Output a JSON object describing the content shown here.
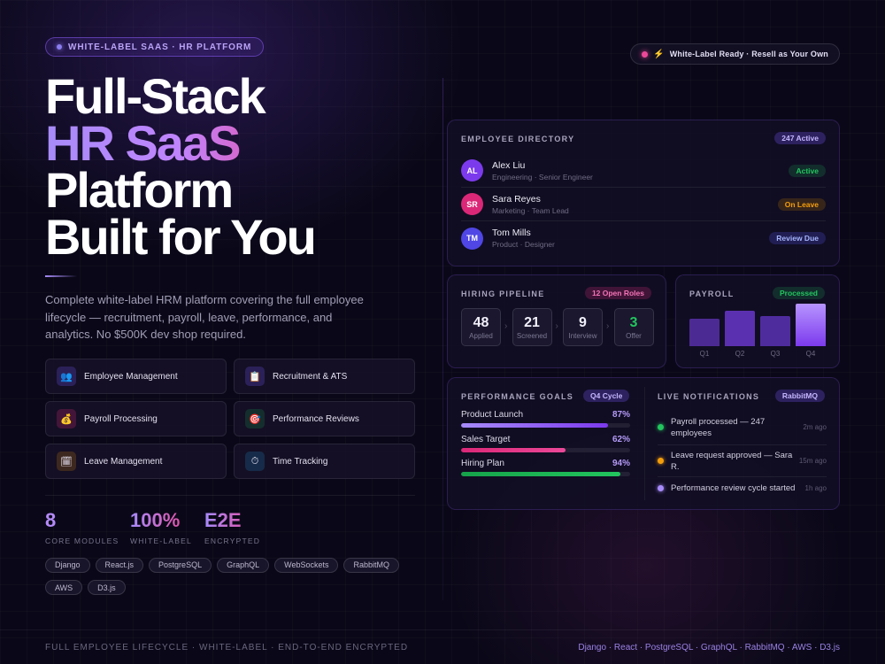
{
  "top_pill": "WHITE-LABEL SAAS · HR PLATFORM",
  "ready_pill": "White-Label Ready · Resell as Your Own",
  "headline": {
    "line1": "Full-Stack",
    "line2": "HR SaaS",
    "line3": "Platform",
    "line4": "Built for You"
  },
  "description": "Complete white-label HRM platform covering the full employee lifecycle — recruitment, payroll, leave, performance, and analytics. No $500K dev shop required.",
  "features": [
    {
      "label": "Employee Management",
      "icon": "people-icon",
      "glyph": "👥"
    },
    {
      "label": "Recruitment & ATS",
      "icon": "clipboard-icon",
      "glyph": "📋"
    },
    {
      "label": "Payroll Processing",
      "icon": "money-bag-icon",
      "glyph": "💰"
    },
    {
      "label": "Performance Reviews",
      "icon": "target-icon",
      "glyph": "🎯"
    },
    {
      "label": "Leave Management",
      "icon": "calendar-icon",
      "glyph": "🗓"
    },
    {
      "label": "Time Tracking",
      "icon": "stopwatch-icon",
      "glyph": "⏱"
    }
  ],
  "stats": [
    {
      "value": "8",
      "label": "CORE MODULES"
    },
    {
      "value": "100%",
      "label": "WHITE-LABEL"
    },
    {
      "value": "E2E",
      "label": "ENCRYPTED"
    }
  ],
  "tags": [
    "Django",
    "React.js",
    "PostgreSQL",
    "GraphQL",
    "WebSockets",
    "RabbitMQ",
    "AWS",
    "D3.js"
  ],
  "directory": {
    "title": "EMPLOYEE DIRECTORY",
    "badge": "247 Active",
    "employees": [
      {
        "initials": "AL",
        "name": "Alex Liu",
        "role": "Engineering · Senior Engineer",
        "status": "Active",
        "avatar_color": "#7c3aed"
      },
      {
        "initials": "SR",
        "name": "Sara Reyes",
        "role": "Marketing · Team Lead",
        "status": "On Leave",
        "avatar_color": "#db2777"
      },
      {
        "initials": "TM",
        "name": "Tom Mills",
        "role": "Product · Designer",
        "status": "Review Due",
        "avatar_color": "#4f46e5"
      }
    ]
  },
  "pipeline": {
    "title": "HIRING PIPELINE",
    "badge": "12 Open Roles",
    "stages": [
      {
        "count": "48",
        "label": "Applied"
      },
      {
        "count": "21",
        "label": "Screened"
      },
      {
        "count": "9",
        "label": "Interview"
      },
      {
        "count": "3",
        "label": "Offer"
      }
    ]
  },
  "payroll": {
    "title": "PAYROLL",
    "badge": "Processed",
    "chart_data": {
      "type": "bar",
      "categories": [
        "Q1",
        "Q2",
        "Q3",
        "Q4"
      ],
      "values": [
        31,
        40,
        34,
        48
      ]
    }
  },
  "goals": {
    "title": "PERFORMANCE GOALS",
    "badge": "Q4 Cycle",
    "items": [
      {
        "name": "Product Launch",
        "pct": "87%",
        "value": 87,
        "color": "#8b5cf6"
      },
      {
        "name": "Sales Target",
        "pct": "62%",
        "value": 62,
        "color": "#ec4899"
      },
      {
        "name": "Hiring Plan",
        "pct": "94%",
        "value": 94,
        "color": "#22c55e"
      }
    ]
  },
  "notifications": {
    "title": "LIVE NOTIFICATIONS",
    "badge": "RabbitMQ",
    "items": [
      {
        "text": "Payroll processed — 247 employees",
        "time": "2m ago",
        "color": "#22c55e"
      },
      {
        "text": "Leave request approved — Sara R.",
        "time": "15m ago",
        "color": "#f59e0b"
      },
      {
        "text": "Performance review cycle started",
        "time": "1h ago",
        "color": "#a78bfa"
      }
    ]
  },
  "footer": {
    "left": "FULL EMPLOYEE LIFECYCLE · WHITE-LABEL · END-TO-END ENCRYPTED",
    "right": "Django · React · PostgreSQL · GraphQL · RabbitMQ · AWS · D3.js"
  }
}
